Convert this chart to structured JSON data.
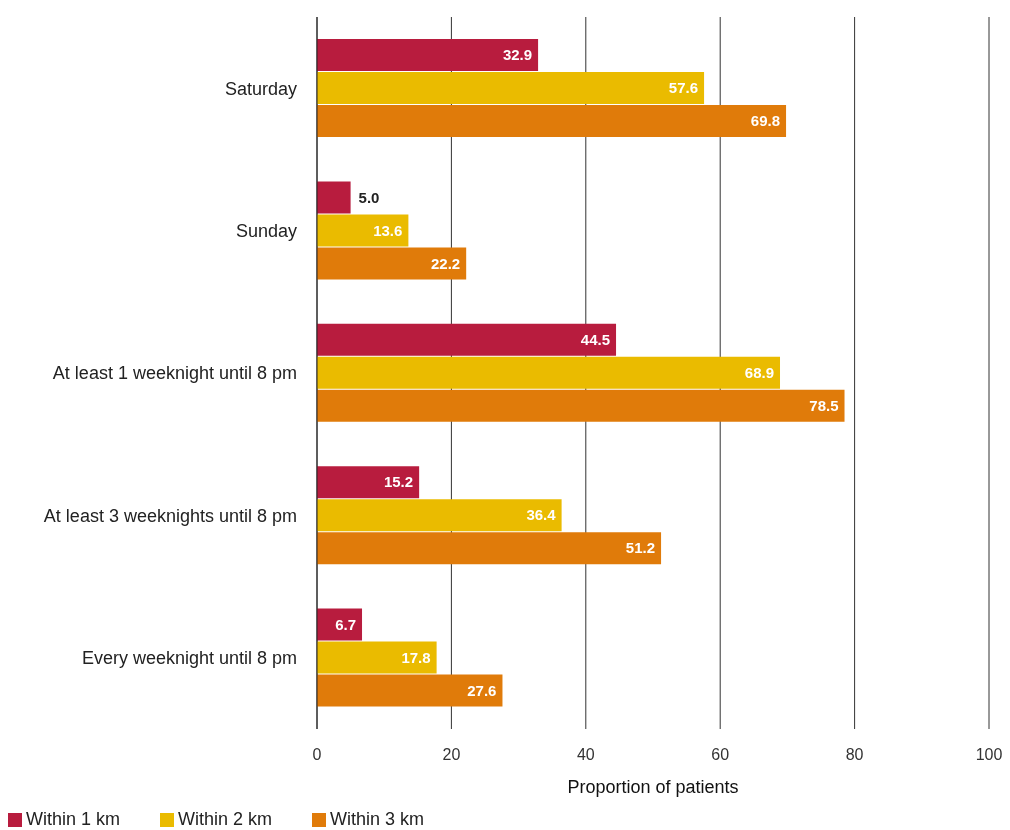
{
  "chart_data": {
    "type": "bar",
    "orientation": "horizontal",
    "xlabel": "Proportion of patients",
    "categories": [
      "Saturday",
      "Sunday",
      "At least 1 weeknight until 8 pm",
      "At least 3 weeknights until 8 pm",
      "Every weeknight until 8 pm"
    ],
    "series": [
      {
        "name": "Within 1 km",
        "color": "#b81c3e",
        "values": [
          32.9,
          5.0,
          44.5,
          15.2,
          6.7
        ],
        "value_labels": [
          "32.9",
          "5.0",
          "44.5",
          "15.2",
          "6.7"
        ]
      },
      {
        "name": "Within 2 km",
        "color": "#eabb00",
        "values": [
          57.6,
          13.6,
          68.9,
          36.4,
          17.8
        ],
        "value_labels": [
          "57.6",
          "13.6",
          "68.9",
          "36.4",
          "17.8"
        ]
      },
      {
        "name": "Within 3 km",
        "color": "#e07b0a",
        "values": [
          69.8,
          22.2,
          78.5,
          51.2,
          27.6
        ],
        "value_labels": [
          "69.8",
          "22.2",
          "78.5",
          "51.2",
          "27.6"
        ]
      }
    ],
    "xlim": [
      0,
      100
    ],
    "xticks": [
      0,
      20,
      40,
      60,
      80,
      100
    ],
    "grid": "x",
    "legend": "bottom left"
  }
}
